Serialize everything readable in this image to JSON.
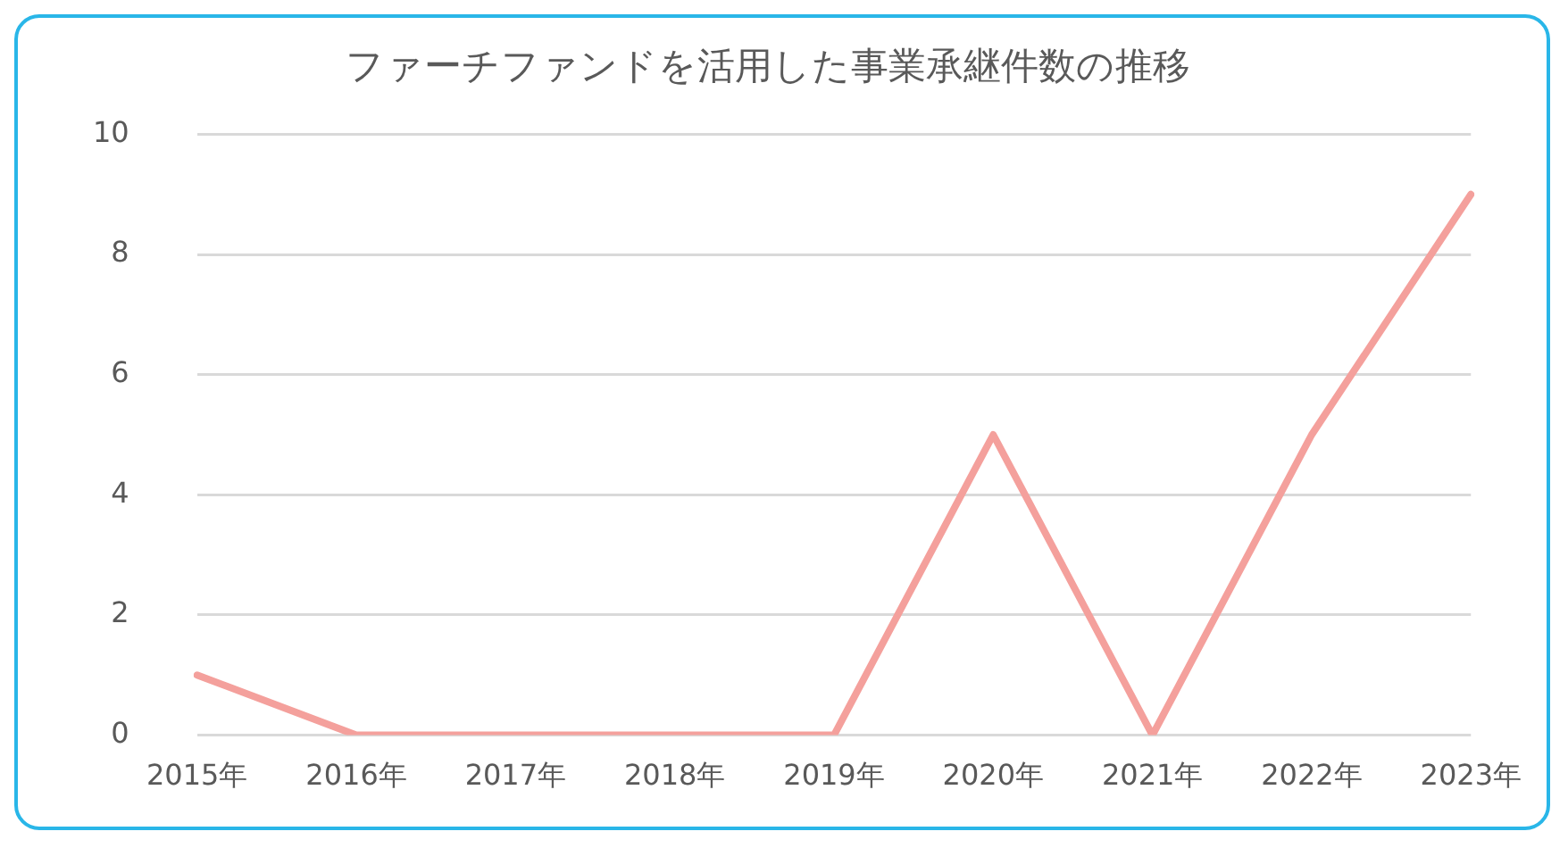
{
  "chart_data": {
    "type": "line",
    "title": "ファーチファンドを活用した事業承継件数の推移",
    "categories": [
      "2015年",
      "2016年",
      "2017年",
      "2018年",
      "2019年",
      "2020年",
      "2021年",
      "2022年",
      "2023年"
    ],
    "series": [
      {
        "color": "#f4a09c",
        "values": [
          1,
          0,
          0,
          0,
          0,
          5,
          0,
          5,
          9
        ]
      }
    ],
    "ylim": [
      0,
      10
    ],
    "yticks": [
      0,
      2,
      4,
      6,
      8,
      10
    ],
    "grid": "y",
    "legend": false,
    "marker": "none",
    "line_style": "solid"
  }
}
